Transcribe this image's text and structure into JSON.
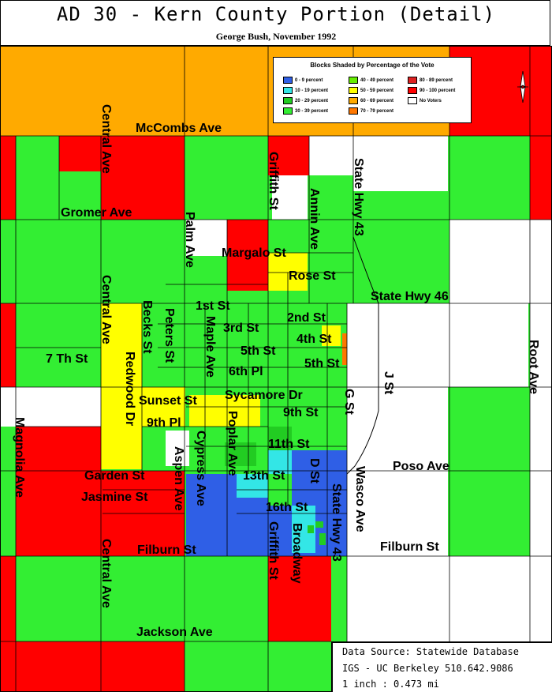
{
  "header": {
    "title": "AD 30 - Kern County Portion (Detail)",
    "subtitle": "George Bush, November 1992"
  },
  "legend": {
    "title": "Blocks Shaded by Percentage of the Vote",
    "items": [
      {
        "label": "0 - 9 percent",
        "color": "#2f5fe6"
      },
      {
        "label": "10 - 19 percent",
        "color": "#33e6e6"
      },
      {
        "label": "20 - 29 percent",
        "color": "#22cc22"
      },
      {
        "label": "30 - 39 percent",
        "color": "#33ee33"
      },
      {
        "label": "40 - 49 percent",
        "color": "#66ee00"
      },
      {
        "label": "50 - 59 percent",
        "color": "#ffff00"
      },
      {
        "label": "60 - 69 percent",
        "color": "#ffaa00"
      },
      {
        "label": "70 - 79 percent",
        "color": "#ff7700"
      },
      {
        "label": "80 - 89 percent",
        "color": "#dd2222"
      },
      {
        "label": "90 - 100 percent",
        "color": "#ff0000"
      },
      {
        "label": "No Voters",
        "color": "#ffffff"
      }
    ]
  },
  "streets": {
    "mccombs": "McCombs Ave",
    "gromer": "Gromer Ave",
    "central_top": "Central Ave",
    "central_mid": "Central Ave",
    "central_bottom": "Central Ave",
    "griffith_top": "Griffith St",
    "griffith_bottom": "Griffith St",
    "annin": "Annin Ave",
    "state_hwy_43_top": "State Hwy 43",
    "state_hwy_43_bottom": "State Hwy 43",
    "palm": "Palm Ave",
    "margalo": "Margalo St",
    "rose": "Rose St",
    "state_hwy_46": "State Hwy 46",
    "first": "1st St",
    "second": "2nd St",
    "third": "3rd St",
    "fourth": "4th St",
    "fifth": "5th St",
    "fifth_b": "5th St",
    "sixth_pl": "6th Pl",
    "becks": "Becks St",
    "peters": "Peters St",
    "maple": "Maple Ave",
    "redwood": "Redwood Dr",
    "seventh": "7 Th St",
    "root": "Root Ave",
    "sycamore": "Sycamore Dr",
    "sunset": "Sunset St",
    "ninth_pl": "9th Pl",
    "ninth": "9th St",
    "g_st": "G St",
    "j_st": "J St",
    "poplar": "Poplar Ave",
    "cypress": "Cypress Ave",
    "eleventh": "11th St",
    "magnolia": "Magnolia Ave",
    "aspen": "Aspen Ave",
    "garden": "Garden St",
    "thirteenth": "13th St",
    "d_st": "D St",
    "wasco": "Wasco Ave",
    "poso": "Poso Ave",
    "jasmine": "Jasmine St",
    "sixteenth": "16th St",
    "broadway": "Broadway",
    "filburn_left": "Filburn St",
    "filburn_right": "Filburn St",
    "jackson": "Jackson Ave"
  },
  "source": {
    "line1": "Data Source: Statewide Database",
    "line2": "IGS - UC Berkeley 510.642.9086",
    "line3": "1 inch : 0.473 mi"
  }
}
